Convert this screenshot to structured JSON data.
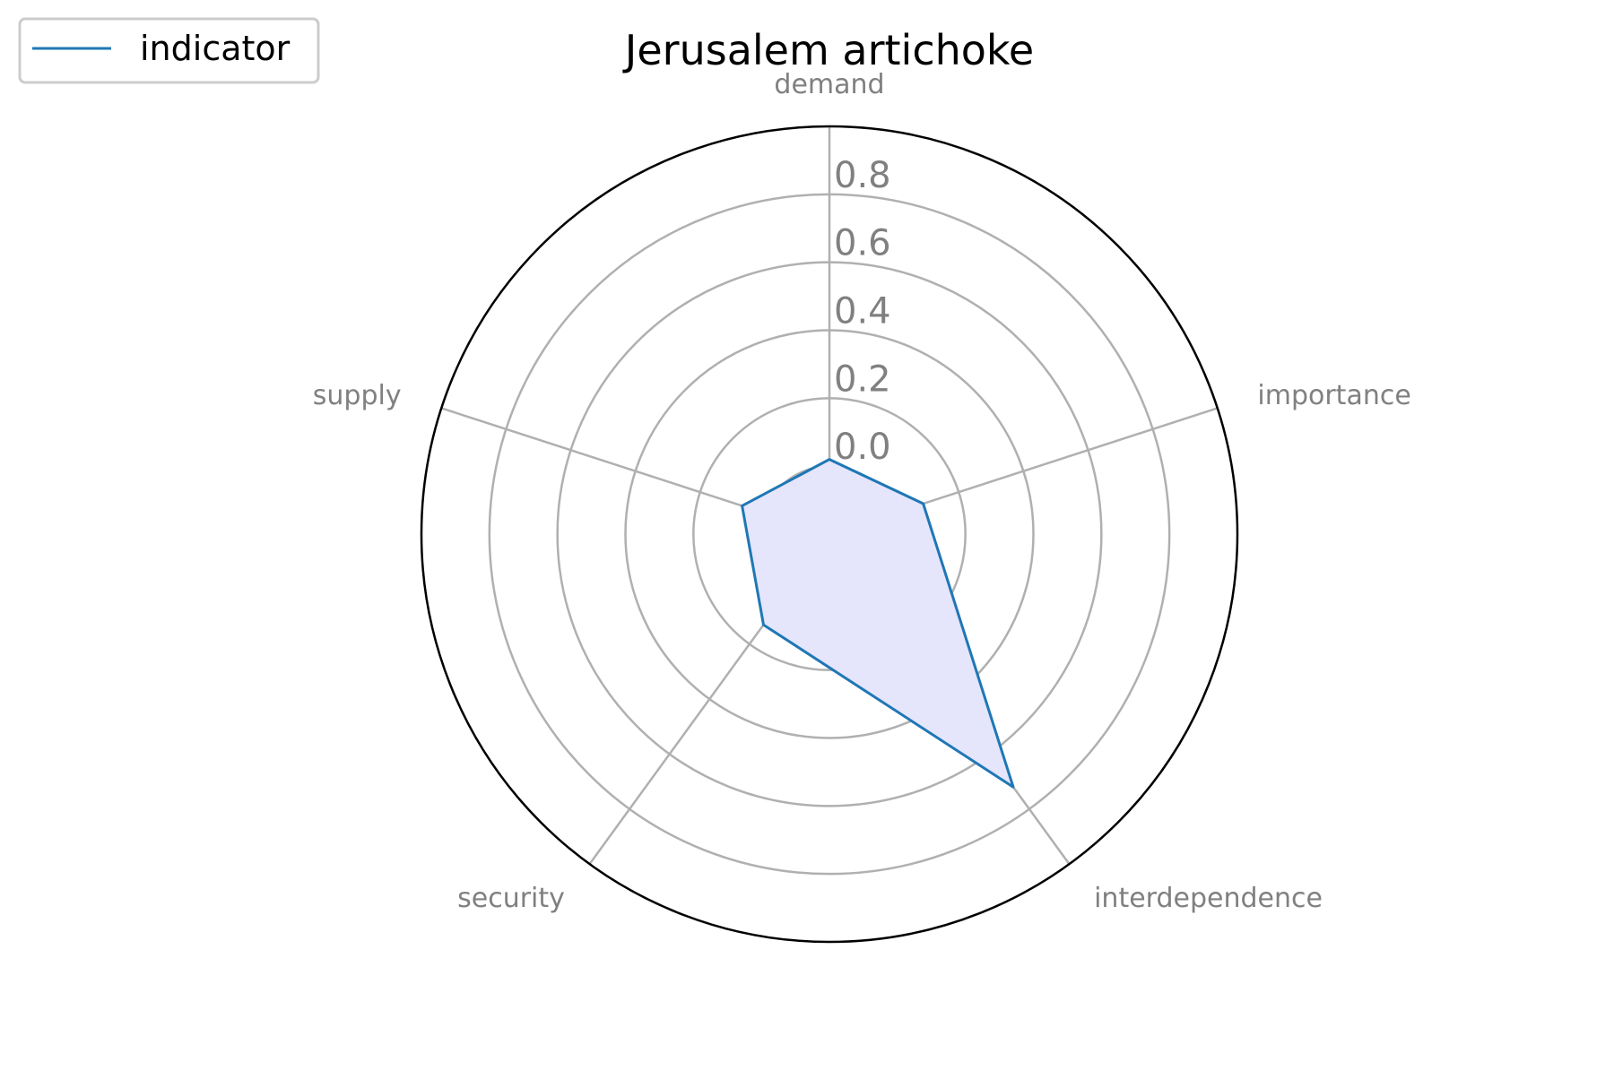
{
  "chart_data": {
    "type": "radar",
    "title": "Jerusalem artichoke",
    "axes": [
      "demand",
      "importance",
      "interdependence",
      "security",
      "supply"
    ],
    "series": [
      {
        "name": "indicator",
        "values": [
          0.02,
          0.09,
          0.72,
          0.13,
          0.07
        ]
      }
    ],
    "radial_ticks": [
      "0.0",
      "0.2",
      "0.4",
      "0.6",
      "0.8"
    ],
    "radial_tick_values": [
      0.0,
      0.2,
      0.4,
      0.6,
      0.8
    ],
    "rlim": [
      -0.2,
      1.0
    ],
    "grid": true,
    "legend_position": "top-left",
    "colors": {
      "line": "#1f77b4",
      "fill": "#e5e5fc",
      "grid": "#b0b0b0",
      "outer_circle": "#000000",
      "labels": "#808080"
    }
  }
}
